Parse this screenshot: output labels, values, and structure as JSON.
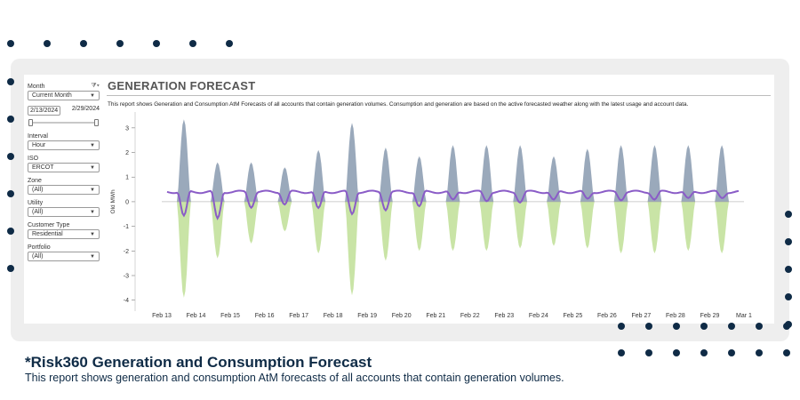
{
  "filters": {
    "month": {
      "label": "Month",
      "value": "Current Month"
    },
    "date_start": "2/13/2024",
    "date_end": "2/29/2024",
    "interval": {
      "label": "Interval",
      "value": "Hour"
    },
    "iso": {
      "label": "ISO",
      "value": "ERCOT"
    },
    "zone": {
      "label": "Zone",
      "value": "(All)"
    },
    "utility": {
      "label": "Utility",
      "value": "(All)"
    },
    "customer_type": {
      "label": "Customer Type",
      "value": "Residential"
    },
    "portfolio": {
      "label": "Portfolio",
      "value": "(All)"
    }
  },
  "report": {
    "title": "GENERATION FORECAST",
    "description": "This report shows Generation and Consumption AtM Forecasts of all accounts that contain generation volumes. Consumption and generation are based on the active forecasted weather along with the latest usage and account data."
  },
  "caption": {
    "title": "*Risk360 Generation and Consumption Forecast",
    "subtitle": "This report shows generation and consumption AtM forecasts of all accounts that contain generation volumes."
  },
  "colors": {
    "generation": "#9aa9bb",
    "consumption": "#c9e4a6",
    "net": "#8a5cc7",
    "dots": "#0f2b46"
  },
  "chart_data": {
    "type": "area",
    "ylabel": "Old MWh",
    "ylim": [
      -4.3,
      3.5
    ],
    "yticks": [
      3,
      2,
      1,
      0,
      -1,
      -2,
      -3,
      -4
    ],
    "x_ticks": [
      "Feb 13",
      "Feb 14",
      "Feb 15",
      "Feb 16",
      "Feb 17",
      "Feb 18",
      "Feb 19",
      "Feb 20",
      "Feb 21",
      "Feb 22",
      "Feb 23",
      "Feb 24",
      "Feb 25",
      "Feb 26",
      "Feb 27",
      "Feb 28",
      "Feb 29",
      "Mar 1"
    ],
    "grid": false,
    "series": [
      {
        "daily_peak": [
          3.35,
          1.6,
          1.6,
          1.4,
          2.1,
          3.2,
          2.2,
          1.85,
          2.3,
          2.3,
          2.3,
          1.85,
          2.15,
          2.3,
          2.3,
          2.3,
          2.3
        ]
      },
      {
        "daily_peak": [
          -3.9,
          -2.3,
          -1.7,
          -1.2,
          -2.1,
          -3.8,
          -2.4,
          -2.0,
          -2.0,
          -2.0,
          -1.9,
          -1.8,
          -1.9,
          -2.1,
          -2.1,
          -2.0,
          -2.1
        ]
      },
      {
        "baseline": 0.4,
        "daily_dip": [
          -0.6,
          -0.7,
          -0.2,
          -0.1,
          -0.3,
          -0.5,
          -0.3,
          -0.2,
          0.05,
          0.05,
          0.0,
          0.05,
          0.1,
          0.1,
          0.1,
          0.1,
          0.15
        ]
      }
    ]
  }
}
